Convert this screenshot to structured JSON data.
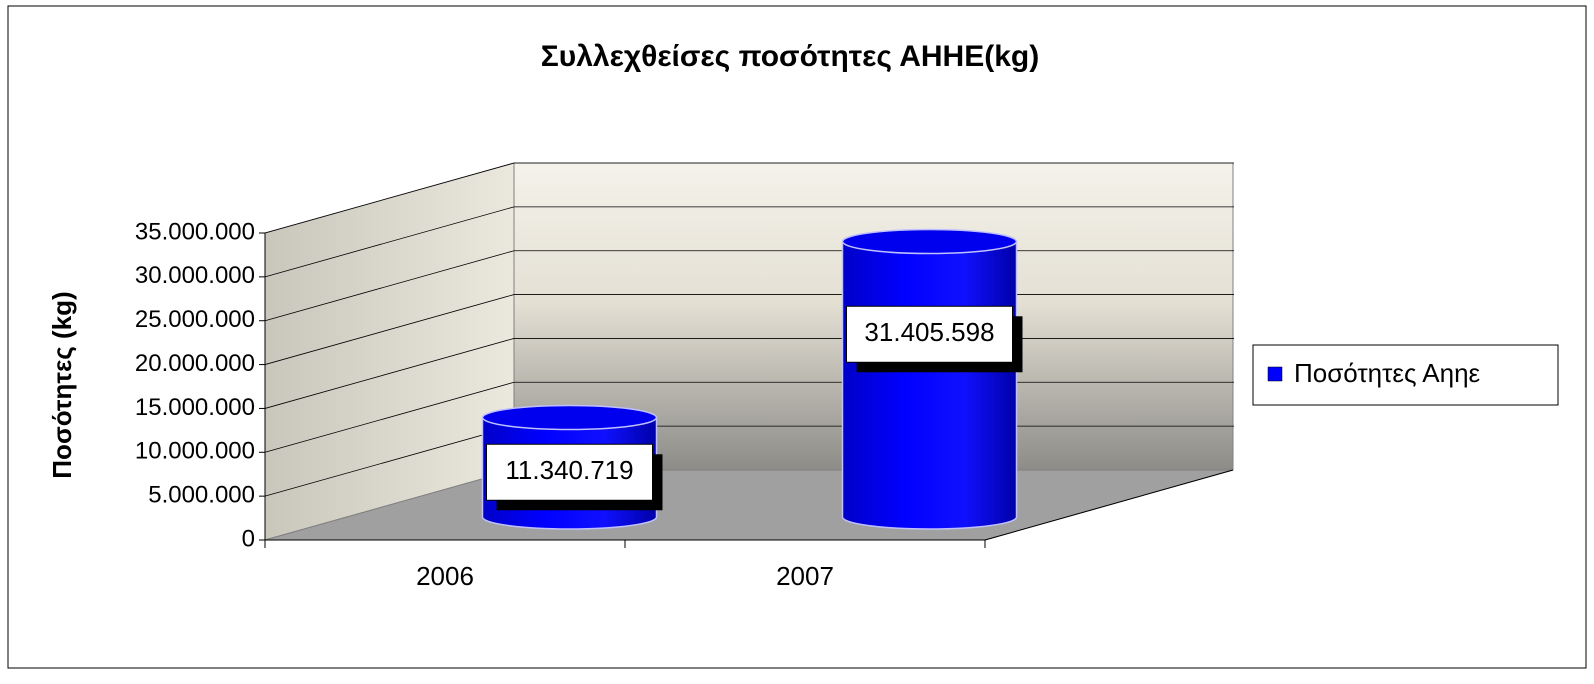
{
  "chart_data": {
    "type": "bar3d",
    "title": "Συλλεχθείσες ποσότητες ΑΗΗΕ(kg)",
    "ylabel": "Ποσότητες (kg)",
    "categories": [
      "2006",
      "2007"
    ],
    "series": [
      {
        "name": "Ποσότητες Αηηε",
        "color": "#0000ff",
        "values": [
          11340719,
          31405598
        ],
        "value_labels": [
          "11.340.719",
          "31.405.598"
        ]
      }
    ],
    "ylim": [
      0,
      35000000
    ],
    "yticks": [
      0,
      {
        "value": 5000000,
        "label": "5.000.000"
      },
      {
        "value": 10000000,
        "label": "10.000.000"
      },
      {
        "value": 15000000,
        "label": "15.000.000"
      },
      {
        "value": 20000000,
        "label": "20.000.000"
      },
      {
        "value": 25000000,
        "label": "25.000.000"
      },
      {
        "value": 30000000,
        "label": "30.000.000"
      },
      {
        "value": 35000000,
        "label": "35.000.000"
      }
    ],
    "grid": true,
    "legend": "right"
  }
}
